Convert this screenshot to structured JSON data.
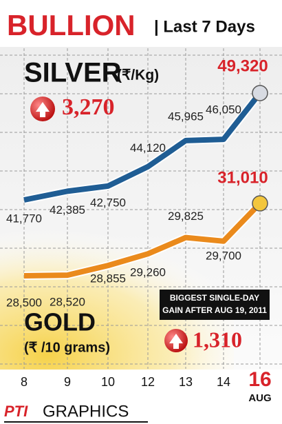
{
  "chart_data": {
    "type": "line",
    "title": "BULLION",
    "subtitle": "| Last 7 Days",
    "categories": [
      "8",
      "9",
      "10",
      "12",
      "13",
      "14",
      "16"
    ],
    "x_note": "AUG",
    "series": [
      {
        "name": "SILVER",
        "unit": "(₹/Kg)",
        "color": "#1f5d94",
        "values": [
          41770,
          42385,
          42750,
          44120,
          45965,
          46050,
          49320
        ],
        "value_labels": [
          "41,770",
          "42,385",
          "42,750",
          "44,120",
          "45,965",
          "46,050",
          "49,320"
        ],
        "change": {
          "value": 3270,
          "label": "3,270"
        }
      },
      {
        "name": "GOLD",
        "unit": "(₹ /10 grams)",
        "color": "#ea8a1c",
        "values": [
          28500,
          28520,
          28855,
          29260,
          29825,
          29700,
          31010
        ],
        "value_labels": [
          "28,500",
          "28,520",
          "28,855",
          "29,260",
          "29,825",
          "29,700",
          "31,010"
        ],
        "change": {
          "value": 1310,
          "label": "1,310"
        },
        "annotation": [
          "BIGGEST SINGLE-DAY",
          "GAIN AFTER AUG 19, 2011"
        ]
      }
    ],
    "grid": true,
    "source": [
      "PTI",
      "GRAPHICS"
    ]
  }
}
